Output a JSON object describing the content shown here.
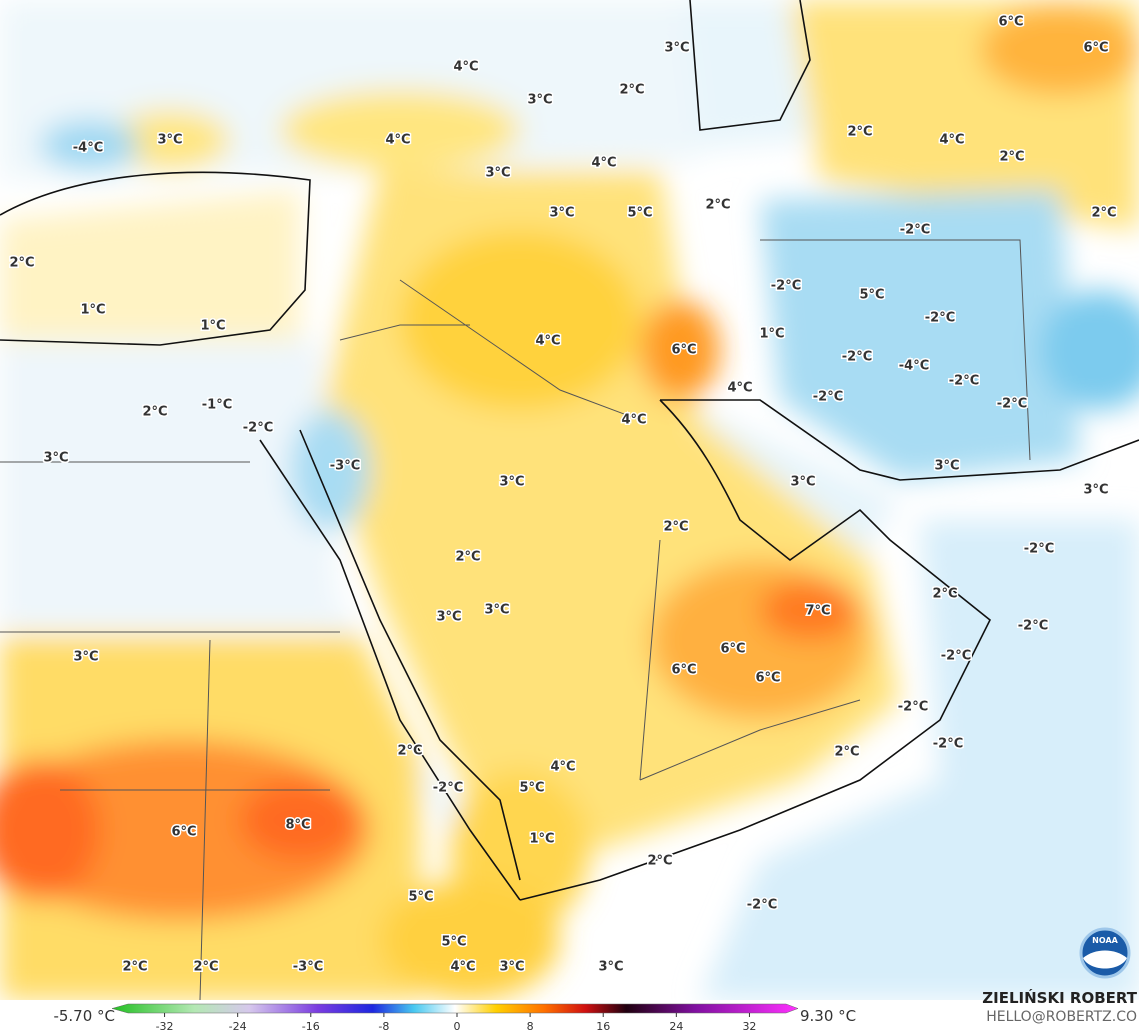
{
  "map": {
    "labels": [
      "4°C",
      "3°C",
      "6°C",
      "6°C",
      "3°C",
      "2°C",
      "-4°C",
      "3°C",
      "4°C",
      "4°C",
      "2°C",
      "4°C",
      "2°C",
      "3°C",
      "3°C",
      "5°C",
      "2°C",
      "2°C",
      "-2°C",
      "2°C",
      "1°C",
      "1°C",
      "-2°C",
      "5°C",
      "-2°C",
      "4°C",
      "6°C",
      "1°C",
      "-2°C",
      "-4°C",
      "-2°C",
      "4°C",
      "-2°C",
      "-2°C",
      "2°C",
      "-1°C",
      "-2°C",
      "4°C",
      "3°C",
      "-3°C",
      "3°C",
      "3°C",
      "3°C",
      "3°C",
      "2°C",
      "-2°C",
      "2°C",
      "2°C",
      "7°C",
      "3°C",
      "3°C",
      "-2°C",
      "6°C",
      "3°C",
      "6°C",
      "6°C",
      "-2°C",
      "-2°C",
      "-2°C",
      "2°C",
      "2°C",
      "-2°C",
      "4°C",
      "5°C",
      "6°C",
      "8°C",
      "1°C",
      "2°C",
      "5°C",
      "-2°C",
      "5°C",
      "2°C",
      "2°C",
      "-3°C",
      "4°C",
      "3°C",
      "3°C"
    ]
  },
  "colorbar": {
    "min_label": "-5.70 °C",
    "max_label": "9.30 °C",
    "range": [
      -36,
      36
    ],
    "ticks": [
      -32,
      -24,
      -16,
      -8,
      0,
      8,
      16,
      24,
      32
    ]
  },
  "credit": {
    "name": "ZIELIŃSKI ROBERT",
    "email": "HELLO@ROBERTZ.CO"
  },
  "logo": {
    "text": "NOAA"
  }
}
